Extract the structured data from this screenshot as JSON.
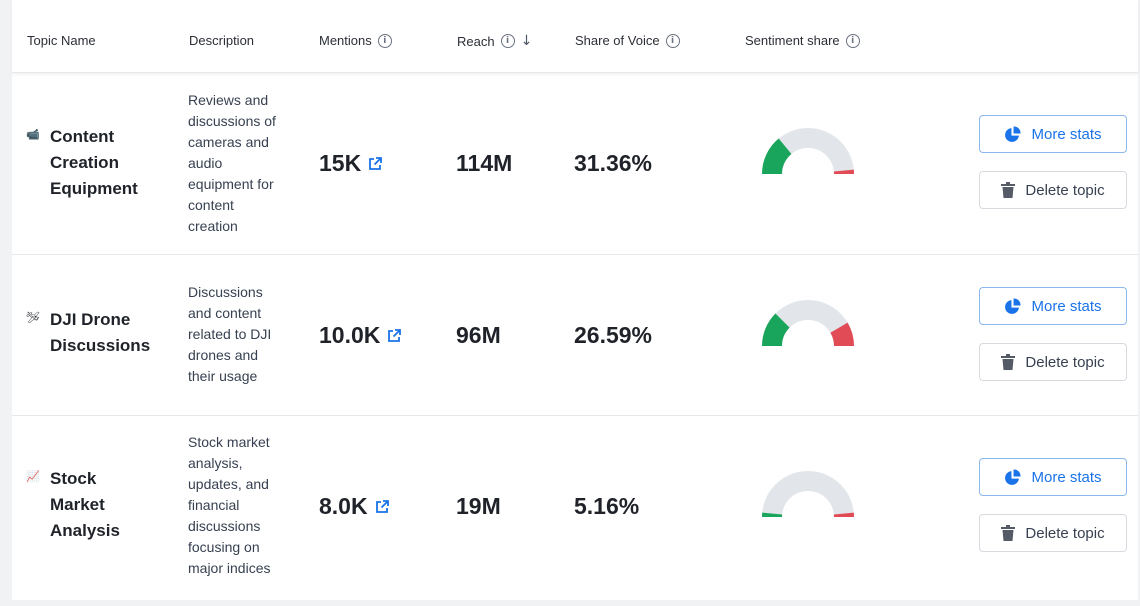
{
  "columns": {
    "topic_name": "Topic Name",
    "description": "Description",
    "mentions": "Mentions",
    "reach": "Reach",
    "share_of_voice": "Share of Voice",
    "sentiment_share": "Sentiment share"
  },
  "sort": {
    "column": "reach",
    "direction": "descending",
    "icon": "arrow-down-icon"
  },
  "rows": [
    {
      "icon": "camera-icon",
      "name_lines": [
        "Content",
        "Creation",
        "Equipment"
      ],
      "desc_lines": [
        "Reviews and",
        "discussions of",
        "cameras and",
        "audio",
        "equipment for",
        "content",
        "creation"
      ],
      "mentions": "15K",
      "reach": "114M",
      "share_of_voice": "31.36%",
      "sentiment": {
        "positive": 0.28,
        "negative": 0.03
      }
    },
    {
      "icon": "drone-icon",
      "name_lines": [
        "DJI Drone",
        "Discussions"
      ],
      "desc_lines": [
        "Discussions",
        "and content",
        "related to DJI",
        "drones and",
        "their usage"
      ],
      "mentions": "10.0K",
      "reach": "96M",
      "share_of_voice": "26.59%",
      "sentiment": {
        "positive": 0.25,
        "negative": 0.17
      }
    },
    {
      "icon": "chart-icon",
      "name_lines": [
        "Stock",
        "Market",
        "Analysis"
      ],
      "desc_lines": [
        "Stock market",
        "analysis,",
        "updates, and",
        "financial",
        "discussions",
        "focusing on",
        "major indices"
      ],
      "mentions": "8.0K",
      "reach": "19M",
      "share_of_voice": "5.16%",
      "sentiment": {
        "positive": 0.03,
        "negative": 0.03
      }
    }
  ],
  "actions": {
    "more_stats": "More stats",
    "delete_topic": "Delete topic"
  },
  "colors": {
    "positive": "#1aa55c",
    "negative": "#e04b55",
    "neutral": "#e2e5e9",
    "accent": "#1a73e8"
  }
}
